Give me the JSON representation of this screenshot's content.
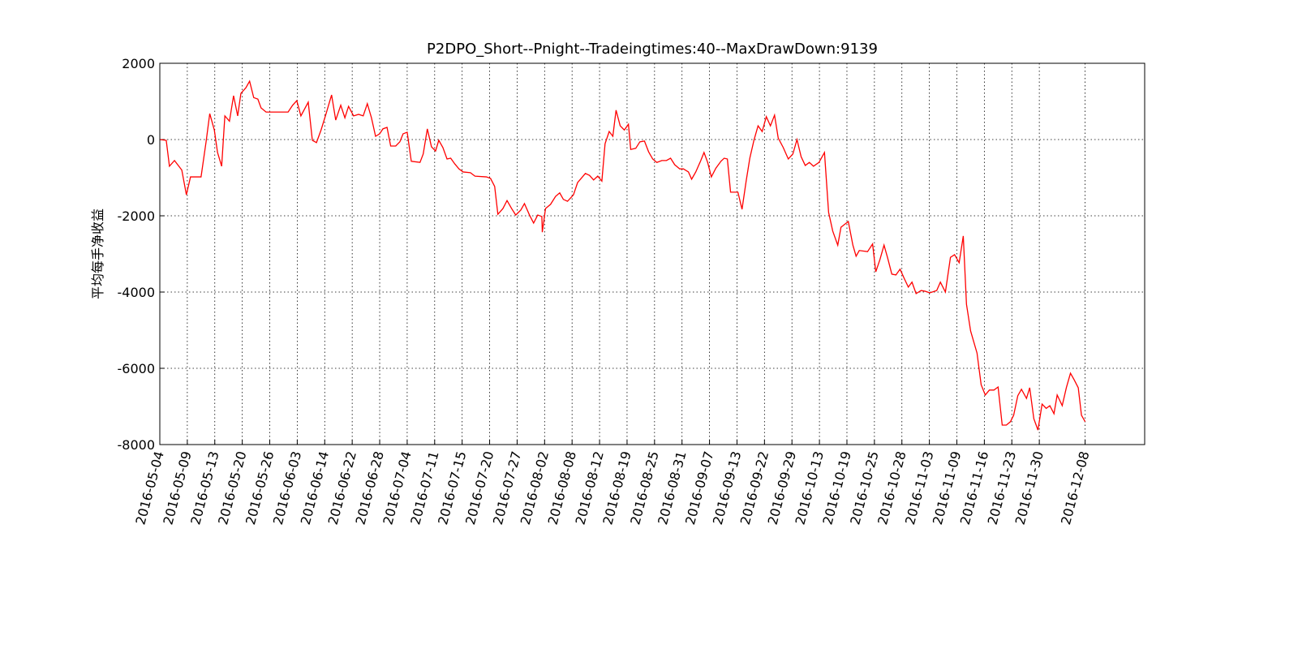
{
  "chart_data": {
    "type": "line",
    "title": "P2DPO_Short--Pnight--Tradeingtimes:40--MaxDrawDown:9139",
    "y_label": "平均每手净收益",
    "x": [
      0,
      1.4,
      2.1,
      3.2,
      4.8,
      5.8,
      6.7,
      9.0,
      10.1,
      10.9,
      11.9,
      12.6,
      13.5,
      14.2,
      15.2,
      16.1,
      17.0,
      17.7,
      18.8,
      19.6,
      20.5,
      21.4,
      22.1,
      23.2,
      28.0,
      29.0,
      29.9,
      30.8,
      32.4,
      33.3,
      34.2,
      35.2,
      36.3,
      37.5,
      38.4,
      39.5,
      40.4,
      41.2,
      42.3,
      43.4,
      44.4,
      45.3,
      46.2,
      47.1,
      48.0,
      48.7,
      49.6,
      50.4,
      51.5,
      52.4,
      53.1,
      54.0,
      54.9,
      56.8,
      57.5,
      58.4,
      59.3,
      60.2,
      60.9,
      61.8,
      62.7,
      63.5,
      64.4,
      65.3,
      66.2,
      67.8,
      68.8,
      71.3,
      72.2,
      73.1,
      73.8,
      74.9,
      75.8,
      76.8,
      77.7,
      78.8,
      79.6,
      80.7,
      81.6,
      82.5,
      83.4,
      83.5,
      84.2,
      85.3,
      86.4,
      87.3,
      88.1,
      89.0,
      90.3,
      91.2,
      92.9,
      93.8,
      94.7,
      95.6,
      96.5,
      97.2,
      98.1,
      98.9,
      99.6,
      100.5,
      101.4,
      102.3,
      102.8,
      103.9,
      104.8,
      105.8,
      106.7,
      107.6,
      108.5,
      109.6,
      110.6,
      111.5,
      112.4,
      113.5,
      114.3,
      115.4,
      116.1,
      117.0,
      118.1,
      118.8,
      119.6,
      120.4,
      121.4,
      122.5,
      123.2,
      123.9,
      124.6,
      126.2,
      127.1,
      128.0,
      128.8,
      129.7,
      130.6,
      131.5,
      132.4,
      133.3,
      134.2,
      135.0,
      136.1,
      137.2,
      138.2,
      139.1,
      140.0,
      140.9,
      141.8,
      142.7,
      143.9,
      145.1,
      146.0,
      146.9,
      148.0,
      148.7,
      150.3,
      151.3,
      152.0,
      152.7,
      154.5,
      155.6,
      156.3,
      157.2,
      158.1,
      158.9,
      159.8,
      160.7,
      161.6,
      162.5,
      163.4,
      164.2,
      165.1,
      166.2,
      167.1,
      168.1,
      169.6,
      170.4,
      171.5,
      172.6,
      173.5,
      174.5,
      175.4,
      176.1,
      177.0,
      178.4,
      179.3,
      180.2,
      181.1,
      182.1,
      183.0,
      183.9,
      184.8,
      185.7,
      186.4,
      187.3,
      188.1,
      189.2,
      189.9,
      190.8,
      191.7,
      192.6,
      193.5,
      194.3,
      195.2,
      195.9,
      197.0,
      197.9,
      198.8,
      199.6,
      200.5,
      201.2,
      202
    ],
    "series": [
      {
        "name": "P2DPO_Short",
        "color": "#ff0000",
        "values": [
          0,
          -20,
          -700,
          -550,
          -800,
          -1450,
          -980,
          -980,
          -60,
          680,
          250,
          -340,
          -700,
          620,
          480,
          1150,
          620,
          1210,
          1360,
          1530,
          1100,
          1060,
          830,
          720,
          720,
          900,
          1020,
          620,
          980,
          -20,
          -80,
          250,
          680,
          1170,
          510,
          900,
          570,
          870,
          620,
          660,
          620,
          940,
          570,
          85,
          150,
          280,
          320,
          -170,
          -170,
          -60,
          150,
          190,
          -570,
          -600,
          -380,
          280,
          -190,
          -300,
          -20,
          -210,
          -510,
          -490,
          -640,
          -770,
          -850,
          -870,
          -960,
          -980,
          -1020,
          -1230,
          -1960,
          -1810,
          -1600,
          -1810,
          -1980,
          -1850,
          -1680,
          -1980,
          -2190,
          -1980,
          -2020,
          -2430,
          -1810,
          -1700,
          -1490,
          -1400,
          -1570,
          -1620,
          -1450,
          -1130,
          -890,
          -940,
          -1060,
          -960,
          -1090,
          -110,
          210,
          85,
          770,
          360,
          250,
          400,
          -260,
          -230,
          -60,
          -40,
          -320,
          -510,
          -600,
          -550,
          -550,
          -490,
          -660,
          -770,
          -770,
          -850,
          -1040,
          -850,
          -550,
          -340,
          -600,
          -980,
          -750,
          -570,
          -490,
          -510,
          -1380,
          -1380,
          -1830,
          -1090,
          -490,
          -20,
          360,
          210,
          600,
          360,
          640,
          40,
          -210,
          -510,
          -380,
          0,
          -450,
          -680,
          -600,
          -700,
          -600,
          -340,
          -1910,
          -2400,
          -2770,
          -2300,
          -2150,
          -2770,
          -3060,
          -2910,
          -2940,
          -2740,
          -3470,
          -3150,
          -2770,
          -3110,
          -3530,
          -3550,
          -3400,
          -3640,
          -3870,
          -3740,
          -4040,
          -3960,
          -3980,
          -4020,
          -3960,
          -3740,
          -4000,
          -3090,
          -3020,
          -3230,
          -2530,
          -4320,
          -5020,
          -5600,
          -6430,
          -6700,
          -6570,
          -6570,
          -6490,
          -7490,
          -7490,
          -7400,
          -7230,
          -6720,
          -6550,
          -6790,
          -6510,
          -7320,
          -7620,
          -6940,
          -7050,
          -6980,
          -7190,
          -6700,
          -6980,
          -6510,
          -6130,
          -6300,
          -6510,
          -7230,
          -7400
        ]
      }
    ],
    "xlim": [
      0,
      215
    ],
    "xticks": [
      {
        "value": 0,
        "label": "2016-05-04"
      },
      {
        "value": 6,
        "label": "2016-05-09"
      },
      {
        "value": 12,
        "label": "2016-05-13"
      },
      {
        "value": 18,
        "label": "2016-05-20"
      },
      {
        "value": 24,
        "label": "2016-05-26"
      },
      {
        "value": 30,
        "label": "2016-06-03"
      },
      {
        "value": 36,
        "label": "2016-06-14"
      },
      {
        "value": 42,
        "label": "2016-06-22"
      },
      {
        "value": 48,
        "label": "2016-06-28"
      },
      {
        "value": 54,
        "label": "2016-07-04"
      },
      {
        "value": 60,
        "label": "2016-07-11"
      },
      {
        "value": 66,
        "label": "2016-07-15"
      },
      {
        "value": 72,
        "label": "2016-07-20"
      },
      {
        "value": 78,
        "label": "2016-07-27"
      },
      {
        "value": 84,
        "label": "2016-08-02"
      },
      {
        "value": 90,
        "label": "2016-08-08"
      },
      {
        "value": 96,
        "label": "2016-08-12"
      },
      {
        "value": 102,
        "label": "2016-08-19"
      },
      {
        "value": 108,
        "label": "2016-08-25"
      },
      {
        "value": 114,
        "label": "2016-08-31"
      },
      {
        "value": 120,
        "label": "2016-09-07"
      },
      {
        "value": 126,
        "label": "2016-09-13"
      },
      {
        "value": 132,
        "label": "2016-09-22"
      },
      {
        "value": 138,
        "label": "2016-09-29"
      },
      {
        "value": 144,
        "label": "2016-10-13"
      },
      {
        "value": 150,
        "label": "2016-10-19"
      },
      {
        "value": 156,
        "label": "2016-10-25"
      },
      {
        "value": 162,
        "label": "2016-10-28"
      },
      {
        "value": 168,
        "label": "2016-11-03"
      },
      {
        "value": 174,
        "label": "2016-11-09"
      },
      {
        "value": 180,
        "label": "2016-11-16"
      },
      {
        "value": 186,
        "label": "2016-11-23"
      },
      {
        "value": 192,
        "label": "2016-11-30"
      },
      {
        "value": 202,
        "label": "2016-12-08"
      }
    ],
    "ylim": [
      -8000,
      2000
    ],
    "yticks": [
      2000,
      0,
      -2000,
      -4000,
      -6000,
      -8000
    ],
    "grid": true
  }
}
